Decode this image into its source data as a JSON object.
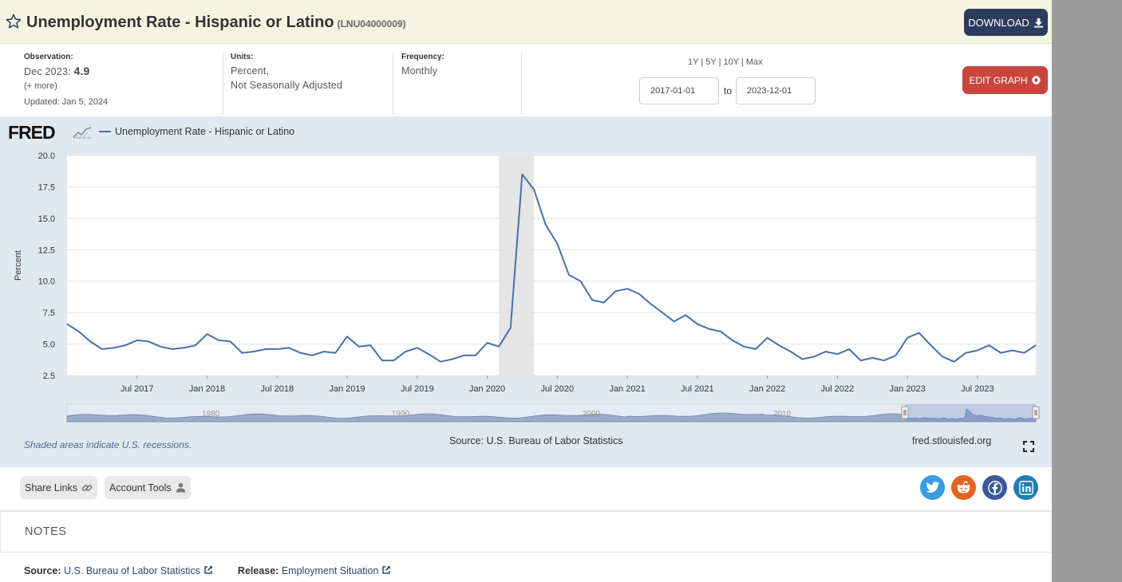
{
  "header": {
    "title": "Unemployment Rate - Hispanic or Latino",
    "series_code": "(LNU04000009)",
    "download_label": "DOWNLOAD",
    "header_bg": "#f4f4e0",
    "download_bg": "#2b3c5e"
  },
  "meta": {
    "observation_label": "Observation:",
    "observation_date": "Dec 2023:",
    "observation_value": "4.9",
    "more_label": "(+ more)",
    "updated": "Updated: Jan 5, 2024",
    "units_label": "Units:",
    "units_line1": "Percent,",
    "units_line2": "Not Seasonally Adjusted",
    "frequency_label": "Frequency:",
    "frequency_value": "Monthly"
  },
  "range": {
    "links": [
      "1Y",
      "5Y",
      "10Y",
      "Max"
    ],
    "separator": " | ",
    "start_date": "2017-01-01",
    "to_label": "to",
    "end_date": "2023-12-01"
  },
  "edit_graph_label": "EDIT GRAPH",
  "graph": {
    "logo_text": "FRED",
    "recession_note": "Shaded areas indicate U.S. recessions.",
    "source_note": "Source: U.S. Bureau of Labor Statistics",
    "url": "fred.stlouisfed.org",
    "navigator_labels": [
      "1980",
      "1990",
      "2000",
      "2010"
    ],
    "bg_color": "#e1e9f0",
    "line_color": "#4572a7"
  },
  "chart_data": {
    "type": "line",
    "title": "",
    "ylabel": "Percent",
    "ylim": [
      2.5,
      20.0
    ],
    "yticks": [
      "20.0",
      "17.5",
      "15.0",
      "12.5",
      "10.0",
      "7.5",
      "5.0",
      "2.5"
    ],
    "xticks": [
      {
        "label": "Jul 2017",
        "date": "2017-07"
      },
      {
        "label": "Jan 2018",
        "date": "2018-01"
      },
      {
        "label": "Jul 2018",
        "date": "2018-07"
      },
      {
        "label": "Jan 2019",
        "date": "2019-01"
      },
      {
        "label": "Jul 2019",
        "date": "2019-07"
      },
      {
        "label": "Jan 2020",
        "date": "2020-01"
      },
      {
        "label": "Jul 2020",
        "date": "2020-07"
      },
      {
        "label": "Jan 2021",
        "date": "2021-01"
      },
      {
        "label": "Jul 2021",
        "date": "2021-07"
      },
      {
        "label": "Jan 2022",
        "date": "2022-01"
      },
      {
        "label": "Jul 2022",
        "date": "2022-07"
      },
      {
        "label": "Jan 2023",
        "date": "2023-01"
      },
      {
        "label": "Jul 2023",
        "date": "2023-07"
      }
    ],
    "x_start": "2017-01",
    "x_end": "2023-12",
    "recessions": [
      {
        "start": "2020-02",
        "end": "2020-04"
      }
    ],
    "legend_position": "top-left",
    "grid": true,
    "series": [
      {
        "name": "Unemployment Rate - Hispanic or Latino",
        "color": "#4572a7",
        "values": [
          6.6,
          6.0,
          5.2,
          4.6,
          4.7,
          4.9,
          5.3,
          5.2,
          4.8,
          4.6,
          4.7,
          4.9,
          5.8,
          5.3,
          5.2,
          4.3,
          4.4,
          4.6,
          4.6,
          4.7,
          4.3,
          4.1,
          4.4,
          4.3,
          5.6,
          4.8,
          4.9,
          3.7,
          3.7,
          4.4,
          4.7,
          4.2,
          3.6,
          3.8,
          4.1,
          4.1,
          5.1,
          4.8,
          6.3,
          18.5,
          17.3,
          14.5,
          13.0,
          10.5,
          10.0,
          8.5,
          8.3,
          9.2,
          9.4,
          9.0,
          8.2,
          7.5,
          6.8,
          7.3,
          6.6,
          6.2,
          6.0,
          5.3,
          4.8,
          4.6,
          5.5,
          4.9,
          4.4,
          3.8,
          4.0,
          4.4,
          4.2,
          4.6,
          3.7,
          3.9,
          3.7,
          4.1,
          5.5,
          5.9,
          4.9,
          4.0,
          3.6,
          4.3,
          4.5,
          4.9,
          4.3,
          4.5,
          4.3,
          4.9
        ]
      }
    ]
  },
  "share": {
    "share_links_label": "Share Links",
    "account_tools_label": "Account Tools",
    "social": [
      "twitter-icon",
      "reddit-icon",
      "facebook-icon",
      "linkedin-icon"
    ]
  },
  "notes": {
    "title": "NOTES",
    "source_label": "Source:",
    "source_value": "U.S. Bureau of Labor Statistics",
    "release_label": "Release:",
    "release_value": "Employment Situation"
  }
}
